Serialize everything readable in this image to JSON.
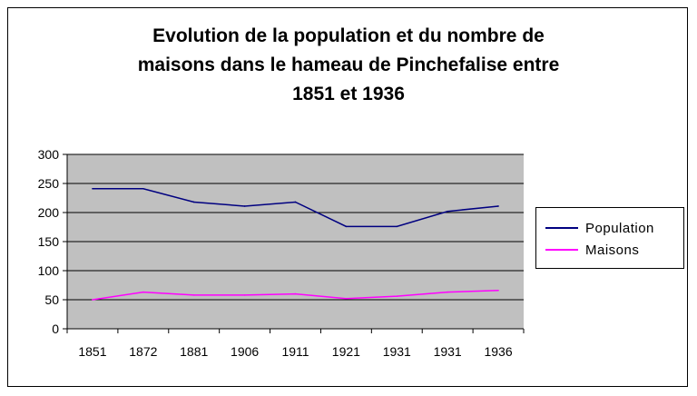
{
  "chart_data": {
    "type": "line",
    "title": "Evolution de la population et du nombre de\nmaisons dans le hameau de Pinchefalise entre\n1851 et 1936",
    "xlabel": "",
    "ylabel": "",
    "categories": [
      "1851",
      "1872",
      "1881",
      "1906",
      "1911",
      "1921",
      "1931",
      "1931",
      "1936"
    ],
    "ylim": [
      0,
      300
    ],
    "yticks": [
      0,
      50,
      100,
      150,
      200,
      250,
      300
    ],
    "grid": true,
    "plot_background": "#c0c0c0",
    "legend_position": "right",
    "series": [
      {
        "name": "Population",
        "color": "#000080",
        "values": [
          241,
          241,
          218,
          211,
          218,
          176,
          176,
          202,
          211
        ]
      },
      {
        "name": "Maisons",
        "color": "#ff00ff",
        "values": [
          50,
          63,
          58,
          58,
          60,
          52,
          56,
          63,
          66
        ]
      }
    ]
  }
}
